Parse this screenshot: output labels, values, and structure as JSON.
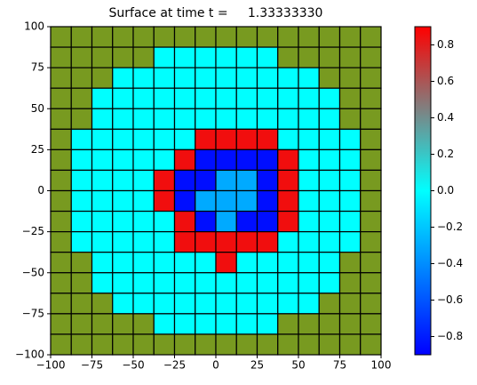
{
  "chart_data": {
    "type": "pcolor",
    "title": "Surface at time t =     1.33333330",
    "x": [
      -93.75,
      -81.25,
      -68.75,
      -56.25,
      -43.75,
      -31.25,
      -18.75,
      -6.25,
      6.25,
      18.75,
      31.25,
      43.75,
      56.25,
      68.75,
      81.25,
      93.75
    ],
    "y": [
      93.75,
      81.25,
      68.75,
      56.25,
      43.75,
      31.25,
      18.75,
      6.25,
      -6.25,
      -18.75,
      -31.25,
      -43.75,
      -56.25,
      -68.75,
      -81.25,
      -93.75
    ],
    "values": [
      [
        null,
        null,
        null,
        null,
        null,
        null,
        null,
        null,
        null,
        null,
        null,
        null,
        null,
        null,
        null,
        null
      ],
      [
        null,
        null,
        null,
        null,
        null,
        0,
        0,
        0,
        0,
        0,
        0,
        null,
        null,
        null,
        null,
        null
      ],
      [
        null,
        null,
        null,
        0,
        0,
        0,
        0,
        0,
        0,
        0,
        0,
        0,
        0,
        null,
        null,
        null
      ],
      [
        null,
        null,
        0,
        0,
        0,
        0,
        0,
        0,
        0,
        0,
        0,
        0,
        0,
        0,
        null,
        null
      ],
      [
        null,
        null,
        0,
        0,
        0,
        0,
        0,
        0,
        0,
        0,
        0,
        0,
        0,
        0,
        null,
        null
      ],
      [
        null,
        0,
        0,
        0,
        0,
        0,
        0,
        0.85,
        0.85,
        0.85,
        0.85,
        0,
        0,
        0,
        0,
        null
      ],
      [
        null,
        0,
        0,
        0,
        0,
        0,
        0.85,
        -0.85,
        -0.85,
        -0.85,
        -0.85,
        0.85,
        0,
        0,
        0,
        null
      ],
      [
        null,
        0,
        0,
        0,
        0,
        0.85,
        -0.85,
        -0.85,
        -0.3,
        -0.3,
        -0.85,
        0.85,
        0,
        0,
        0,
        null
      ],
      [
        null,
        0,
        0,
        0,
        0,
        0.85,
        -0.85,
        -0.3,
        -0.3,
        -0.3,
        -0.85,
        0.85,
        0,
        0,
        0,
        null
      ],
      [
        null,
        0,
        0,
        0,
        0,
        0,
        0.85,
        -0.85,
        -0.3,
        -0.85,
        -0.85,
        0.85,
        0,
        0,
        0,
        null
      ],
      [
        null,
        0,
        0,
        0,
        0,
        0,
        0.85,
        0.85,
        0.85,
        0.85,
        0.85,
        0,
        0,
        0,
        0,
        null
      ],
      [
        null,
        null,
        0,
        0,
        0,
        0,
        0,
        0,
        0.85,
        0,
        0,
        0,
        0,
        0,
        null,
        null
      ],
      [
        null,
        null,
        0,
        0,
        0,
        0,
        0,
        0,
        0,
        0,
        0,
        0,
        0,
        0,
        null,
        null
      ],
      [
        null,
        null,
        null,
        0,
        0,
        0,
        0,
        0,
        0,
        0,
        0,
        0,
        0,
        null,
        null,
        null
      ],
      [
        null,
        null,
        null,
        null,
        null,
        0,
        0,
        0,
        0,
        0,
        0,
        null,
        null,
        null,
        null,
        null
      ],
      [
        null,
        null,
        null,
        null,
        null,
        null,
        null,
        null,
        null,
        null,
        null,
        null,
        null,
        null,
        null,
        null
      ]
    ],
    "null_color": "#789a20",
    "colormap": [
      [
        -0.9,
        "#0000ff"
      ],
      [
        0,
        "#00ffff"
      ],
      [
        0.45,
        "#808080"
      ],
      [
        0.9,
        "#ff0000"
      ]
    ],
    "clim": [
      -0.9,
      0.9
    ],
    "cticks": [
      {
        "value": -0.8,
        "label": "−0.8"
      },
      {
        "value": -0.6,
        "label": "−0.6"
      },
      {
        "value": -0.4,
        "label": "−0.4"
      },
      {
        "value": -0.2,
        "label": "−0.2"
      },
      {
        "value": 0,
        "label": "0.0"
      },
      0.2,
      0.4,
      0.6,
      0.8
    ],
    "xlim": [
      -100,
      100
    ],
    "ylim": [
      -100,
      100
    ],
    "xticks": [
      {
        "value": -100,
        "label": "−100"
      },
      {
        "value": -75,
        "label": "−75"
      },
      {
        "value": -50,
        "label": "−50"
      },
      {
        "value": -25,
        "label": "−25"
      },
      0,
      25,
      50,
      75,
      100
    ],
    "yticks": [
      {
        "value": -100,
        "label": "−100"
      },
      {
        "value": -75,
        "label": "−75"
      },
      {
        "value": -50,
        "label": "−50"
      },
      {
        "value": -25,
        "label": "−25"
      },
      0,
      25,
      50,
      75,
      100
    ]
  }
}
